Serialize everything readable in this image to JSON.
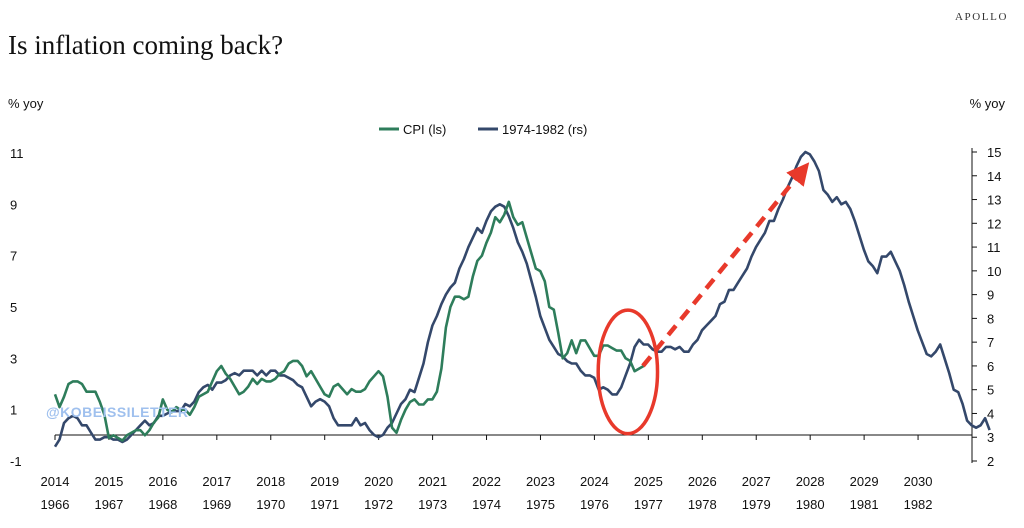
{
  "brand": "APOLLO",
  "title": "Is inflation coming back?",
  "watermark": "@KOBEISSILETTER",
  "chart_data": {
    "type": "line",
    "title": "Is inflation coming back?",
    "ylabel_left": "% yoy",
    "ylabel_right": "% yoy",
    "ylim_left": [
      -1,
      11
    ],
    "ylim_right": [
      2,
      15
    ],
    "yticks_left": [
      -1,
      1,
      3,
      5,
      7,
      9,
      11
    ],
    "yticks_right": [
      2,
      3,
      4,
      5,
      6,
      7,
      8,
      9,
      10,
      11,
      12,
      13,
      14,
      15
    ],
    "x_labels_top": [
      "2014",
      "2015",
      "2016",
      "2017",
      "2018",
      "2019",
      "2020",
      "2021",
      "2022",
      "2023",
      "2024",
      "2025",
      "2026",
      "2027",
      "2028",
      "2029",
      "2030"
    ],
    "x_labels_bottom": [
      "1966",
      "1967",
      "1968",
      "1969",
      "1970",
      "1971",
      "1972",
      "1973",
      "1974",
      "1975",
      "1976",
      "1977",
      "1978",
      "1979",
      "1980",
      "1981",
      "1982"
    ],
    "legend_position": "top-center",
    "colors": {
      "cpi": "#2e7d5b",
      "hist": "#34486b",
      "annotation": "#e8392b"
    },
    "series": [
      {
        "name": "CPI (ls)",
        "axis": "left",
        "x_start": 2014.0,
        "step": 0.0833,
        "values": [
          1.6,
          1.1,
          1.5,
          2.0,
          2.1,
          2.1,
          2.0,
          1.7,
          1.7,
          1.7,
          1.3,
          0.8,
          -0.1,
          0.0,
          -0.1,
          -0.2,
          0.0,
          0.1,
          0.2,
          0.2,
          0.0,
          0.2,
          0.5,
          0.7,
          1.4,
          1.0,
          0.9,
          1.1,
          1.0,
          1.0,
          0.8,
          1.1,
          1.5,
          1.6,
          1.7,
          2.1,
          2.5,
          2.7,
          2.4,
          2.2,
          1.9,
          1.6,
          1.7,
          1.9,
          2.2,
          2.0,
          2.2,
          2.1,
          2.1,
          2.2,
          2.4,
          2.5,
          2.8,
          2.9,
          2.9,
          2.7,
          2.3,
          2.5,
          2.2,
          1.9,
          1.6,
          1.5,
          1.9,
          2.0,
          1.8,
          1.6,
          1.8,
          1.7,
          1.7,
          1.8,
          2.1,
          2.3,
          2.5,
          2.3,
          1.5,
          0.3,
          0.1,
          0.6,
          1.0,
          1.3,
          1.4,
          1.2,
          1.2,
          1.4,
          1.4,
          1.7,
          2.6,
          4.2,
          5.0,
          5.4,
          5.4,
          5.3,
          5.4,
          6.2,
          6.8,
          7.0,
          7.5,
          7.9,
          8.5,
          8.3,
          8.6,
          9.1,
          8.5,
          8.2,
          8.3,
          7.7,
          7.1,
          6.5,
          6.4,
          6.0,
          5.0,
          4.9,
          4.0,
          3.0,
          3.2,
          3.7,
          3.2,
          3.7,
          3.7,
          3.4,
          3.1,
          3.1,
          3.5,
          3.5,
          3.4,
          3.3,
          3.3,
          3.0,
          2.9,
          2.5,
          2.6,
          2.7
        ]
      },
      {
        "name": "1974-1982 (rs)",
        "axis": "right",
        "x_start": 2014.0,
        "step": 0.0833,
        "values": [
          2.6,
          2.9,
          3.6,
          3.8,
          3.9,
          3.8,
          3.5,
          3.5,
          3.2,
          2.9,
          2.9,
          3.0,
          3.0,
          2.9,
          2.9,
          2.8,
          2.9,
          3.1,
          3.3,
          3.5,
          3.7,
          3.5,
          3.6,
          3.9,
          3.9,
          4.0,
          4.1,
          4.1,
          4.1,
          4.4,
          4.3,
          4.5,
          4.9,
          5.1,
          5.2,
          5.0,
          5.3,
          5.3,
          5.4,
          5.6,
          5.7,
          5.6,
          5.8,
          5.8,
          5.8,
          5.6,
          5.8,
          5.6,
          5.8,
          5.8,
          5.6,
          5.6,
          5.5,
          5.4,
          5.2,
          5.1,
          4.7,
          4.3,
          4.5,
          4.6,
          4.5,
          4.3,
          3.8,
          3.5,
          3.5,
          3.5,
          3.5,
          3.8,
          3.5,
          3.6,
          3.3,
          3.1,
          3.0,
          3.1,
          3.4,
          3.6,
          4.0,
          4.4,
          4.6,
          5.0,
          4.9,
          5.5,
          6.1,
          7.0,
          7.7,
          8.1,
          8.6,
          9.0,
          9.3,
          9.5,
          10.1,
          10.5,
          11.0,
          11.4,
          11.8,
          11.6,
          12.1,
          12.5,
          12.7,
          12.8,
          12.7,
          12.3,
          11.8,
          11.2,
          10.8,
          10.3,
          9.6,
          8.9,
          8.1,
          7.6,
          7.1,
          6.8,
          6.5,
          6.4,
          6.2,
          6.1,
          6.1,
          5.8,
          5.6,
          5.6,
          5.5,
          5.0,
          5.1,
          5.0,
          4.8,
          4.8,
          5.1,
          5.6,
          6.1,
          6.8,
          7.1,
          6.9,
          6.9,
          6.7,
          6.6,
          6.6,
          6.8,
          6.8,
          6.7,
          6.8,
          6.6,
          6.6,
          6.9,
          7.1,
          7.5,
          7.7,
          7.9,
          8.1,
          8.6,
          8.7,
          9.2,
          9.2,
          9.5,
          9.8,
          10.1,
          10.6,
          11.0,
          11.3,
          11.6,
          12.1,
          12.1,
          12.6,
          13.0,
          13.5,
          13.9,
          14.4,
          14.8,
          15.0,
          14.9,
          14.6,
          14.2,
          13.4,
          13.2,
          12.9,
          13.1,
          12.8,
          12.9,
          12.6,
          12.1,
          11.5,
          10.9,
          10.4,
          10.2,
          9.9,
          10.6,
          10.6,
          10.8,
          10.4,
          10.0,
          9.4,
          8.7,
          8.1,
          7.5,
          7.0,
          6.5,
          6.4,
          6.6,
          6.9,
          6.3,
          5.7,
          5.0,
          4.9,
          4.4,
          3.7,
          3.5,
          3.4,
          3.5,
          3.8,
          3.3
        ]
      }
    ],
    "annotations": [
      {
        "type": "ellipse",
        "center": {
          "x": 2024.62,
          "y_right": 5.75
        },
        "rx_years": 0.55,
        "ry_right": 2.6,
        "color": "#e8392b"
      },
      {
        "type": "dashed-arrow",
        "from": {
          "x": 2024.9,
          "y_right": 6.0
        },
        "to": {
          "x": 2027.85,
          "y_right": 14.2
        },
        "color": "#e8392b"
      }
    ]
  }
}
